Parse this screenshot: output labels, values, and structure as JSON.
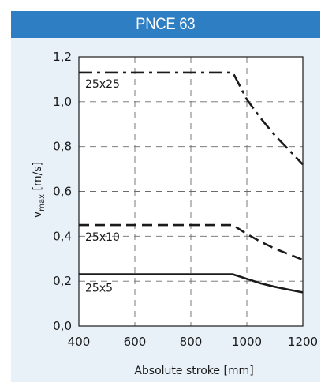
{
  "header": {
    "title": "PNCE 63"
  },
  "colors": {
    "header_bg": "#2e7ec3",
    "panel_bg": "#e9f1f8",
    "plot_bg": "#ffffff",
    "ink": "#1a1a1a"
  },
  "chart_data": {
    "type": "line",
    "title": "",
    "xlabel": "Absolute stroke [mm]",
    "ylabel_main": "v",
    "ylabel_sub": "max",
    "ylabel_unit": "[m/s]",
    "xlim": [
      400,
      1200
    ],
    "ylim": [
      0.0,
      1.2
    ],
    "grid": true,
    "x_ticks": [
      "400",
      "600",
      "800",
      "1000",
      "1200"
    ],
    "y_ticks": [
      "0,0",
      "0,2",
      "0,4",
      "0,6",
      "0,8",
      "1,0",
      "1,2"
    ],
    "series": [
      {
        "name": "25x25",
        "style": "dashdot",
        "points": [
          [
            400,
            1.13
          ],
          [
            950,
            1.13
          ],
          [
            1000,
            1.01
          ],
          [
            1050,
            0.925
          ],
          [
            1100,
            0.85
          ],
          [
            1150,
            0.785
          ],
          [
            1200,
            0.72
          ]
        ]
      },
      {
        "name": "25x10",
        "style": "dashed",
        "points": [
          [
            400,
            0.45
          ],
          [
            950,
            0.45
          ],
          [
            1000,
            0.41
          ],
          [
            1050,
            0.375
          ],
          [
            1100,
            0.345
          ],
          [
            1150,
            0.32
          ],
          [
            1200,
            0.295
          ]
        ]
      },
      {
        "name": "25x5",
        "style": "solid",
        "points": [
          [
            400,
            0.23
          ],
          [
            950,
            0.23
          ],
          [
            1000,
            0.21
          ],
          [
            1050,
            0.19
          ],
          [
            1100,
            0.175
          ],
          [
            1150,
            0.162
          ],
          [
            1200,
            0.15
          ]
        ]
      }
    ]
  }
}
